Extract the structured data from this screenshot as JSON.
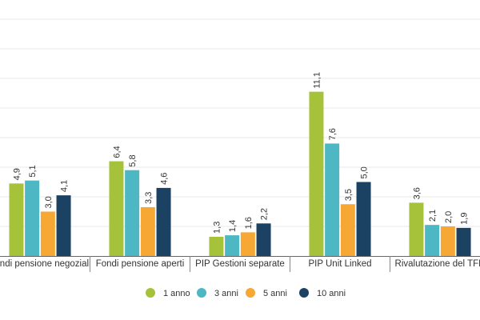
{
  "chart_data": {
    "type": "bar",
    "categories": [
      "Fondi pensione negoziali",
      "Fondi pensione aperti",
      "PIP Gestioni separate",
      "PIP Unit Linked",
      "Rivalutazione del TFR"
    ],
    "series": [
      {
        "name": "1 anno",
        "color": "#a5c23a",
        "values": [
          4.9,
          6.4,
          1.3,
          11.1,
          3.6
        ]
      },
      {
        "name": "3 anni",
        "color": "#4db8c4",
        "values": [
          5.1,
          5.8,
          1.4,
          7.6,
          2.1
        ]
      },
      {
        "name": "5 anni",
        "color": "#f6a734",
        "values": [
          3.0,
          3.3,
          1.6,
          3.5,
          2.0
        ]
      },
      {
        "name": "10 anni",
        "color": "#1b4262",
        "values": [
          4.1,
          4.6,
          2.2,
          5.0,
          1.9
        ]
      }
    ],
    "data_labels": [
      [
        "4,9",
        "6,4",
        "1,3",
        "11,1",
        "3,6"
      ],
      [
        "5,1",
        "5,8",
        "1,4",
        "7,6",
        "2,1"
      ],
      [
        "3,0",
        "3,3",
        "1,6",
        "3,5",
        "2,0"
      ],
      [
        "4,1",
        "4,6",
        "2,2",
        "5,0",
        "1,9"
      ]
    ],
    "ylim": [
      0,
      16
    ],
    "grid": true,
    "legend_position": "bottom"
  }
}
